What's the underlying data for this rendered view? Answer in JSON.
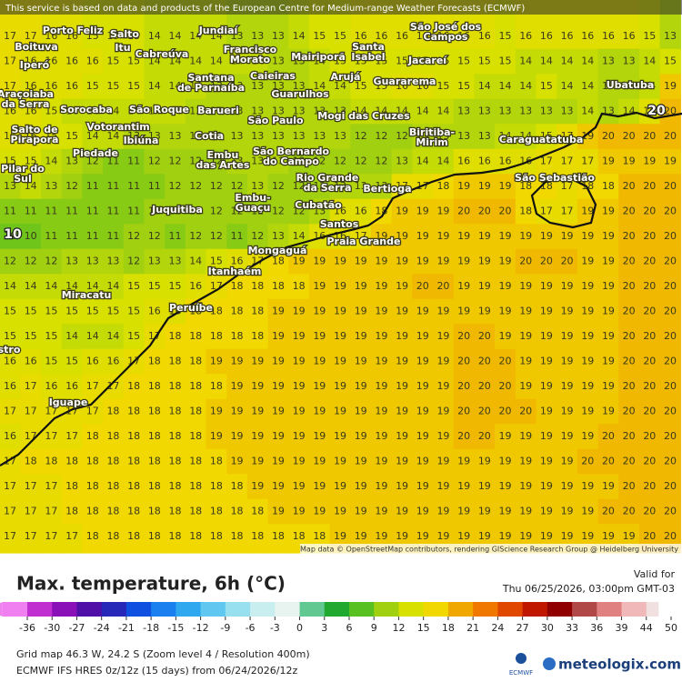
{
  "banner": "This service is based on data and products of the European Centre for Medium-range Weather Forecasts (ECMWF)",
  "attribution": "Map data © OpenStreetMap contributors, rendering GIScience Research Group @ Heidelberg University",
  "grid": [
    [
      17,
      17,
      16,
      16,
      15,
      15,
      15,
      14,
      14,
      14,
      14,
      13,
      13,
      13,
      14,
      15,
      15,
      16,
      16,
      16,
      16,
      16,
      16,
      16,
      15,
      16,
      16,
      16,
      16,
      16,
      16,
      15,
      13
    ],
    [
      17,
      16,
      16,
      16,
      16,
      15,
      15,
      14,
      14,
      14,
      14,
      14,
      14,
      13,
      13,
      14,
      15,
      15,
      15,
      15,
      15,
      15,
      15,
      15,
      15,
      14,
      14,
      14,
      14,
      13,
      13,
      14,
      15
    ],
    [
      17,
      16,
      16,
      16,
      15,
      15,
      15,
      14,
      14,
      14,
      13,
      13,
      13,
      13,
      13,
      14,
      14,
      15,
      15,
      16,
      16,
      15,
      15,
      14,
      14,
      14,
      15,
      14,
      14,
      13,
      13,
      14,
      19
    ],
    [
      16,
      16,
      15,
      14,
      14,
      14,
      14,
      14,
      14,
      13,
      13,
      13,
      13,
      13,
      13,
      13,
      13,
      14,
      14,
      14,
      14,
      14,
      13,
      13,
      13,
      13,
      13,
      13,
      14,
      13,
      14,
      16,
      20
    ],
    [
      16,
      16,
      15,
      15,
      14,
      14,
      13,
      13,
      13,
      13,
      13,
      13,
      13,
      13,
      13,
      13,
      13,
      12,
      12,
      12,
      13,
      13,
      13,
      13,
      14,
      14,
      15,
      17,
      19,
      20,
      20,
      20,
      20
    ],
    [
      15,
      15,
      14,
      13,
      12,
      11,
      11,
      12,
      12,
      12,
      12,
      13,
      13,
      13,
      12,
      12,
      12,
      12,
      12,
      13,
      14,
      14,
      16,
      16,
      16,
      16,
      17,
      17,
      17,
      19,
      19,
      19,
      19
    ],
    [
      13,
      14,
      13,
      12,
      11,
      11,
      11,
      11,
      12,
      12,
      12,
      12,
      13,
      12,
      12,
      12,
      13,
      13,
      13,
      17,
      17,
      18,
      19,
      19,
      19,
      18,
      18,
      17,
      18,
      18,
      20,
      20,
      20
    ],
    [
      11,
      11,
      11,
      11,
      11,
      11,
      11,
      12,
      12,
      12,
      12,
      12,
      12,
      12,
      12,
      13,
      16,
      16,
      18,
      19,
      19,
      19,
      20,
      20,
      20,
      18,
      17,
      17,
      19,
      19,
      20,
      20,
      20
    ],
    [
      10,
      10,
      11,
      11,
      11,
      11,
      12,
      12,
      11,
      12,
      12,
      11,
      12,
      13,
      14,
      16,
      16,
      17,
      19,
      19,
      19,
      19,
      19,
      19,
      19,
      19,
      19,
      19,
      19,
      19,
      20,
      20,
      20
    ],
    [
      12,
      12,
      12,
      13,
      13,
      13,
      12,
      13,
      13,
      14,
      15,
      16,
      17,
      18,
      19,
      19,
      19,
      19,
      19,
      19,
      19,
      19,
      19,
      19,
      19,
      20,
      20,
      20,
      19,
      19,
      20,
      20,
      20
    ],
    [
      14,
      14,
      14,
      14,
      14,
      14,
      15,
      15,
      15,
      16,
      17,
      18,
      18,
      18,
      18,
      19,
      19,
      19,
      19,
      19,
      20,
      20,
      19,
      19,
      19,
      19,
      19,
      19,
      19,
      19,
      20,
      20,
      20
    ],
    [
      15,
      15,
      15,
      15,
      15,
      15,
      15,
      16,
      16,
      18,
      18,
      18,
      18,
      19,
      19,
      19,
      19,
      19,
      19,
      19,
      19,
      19,
      19,
      19,
      19,
      19,
      19,
      19,
      19,
      19,
      20,
      20,
      20
    ],
    [
      15,
      15,
      15,
      14,
      14,
      14,
      15,
      17,
      18,
      18,
      18,
      18,
      18,
      19,
      19,
      19,
      19,
      19,
      19,
      19,
      19,
      19,
      20,
      20,
      19,
      19,
      19,
      19,
      19,
      19,
      20,
      20,
      20
    ],
    [
      16,
      16,
      15,
      15,
      16,
      16,
      17,
      18,
      18,
      18,
      19,
      19,
      19,
      19,
      19,
      19,
      19,
      19,
      19,
      19,
      19,
      19,
      20,
      20,
      20,
      19,
      19,
      19,
      19,
      19,
      20,
      20,
      20
    ],
    [
      16,
      17,
      16,
      16,
      17,
      17,
      18,
      18,
      18,
      18,
      18,
      19,
      19,
      19,
      19,
      19,
      19,
      19,
      19,
      19,
      19,
      19,
      20,
      20,
      20,
      19,
      19,
      19,
      19,
      19,
      20,
      20,
      20
    ],
    [
      17,
      17,
      17,
      17,
      17,
      18,
      18,
      18,
      18,
      18,
      19,
      19,
      19,
      19,
      19,
      19,
      19,
      19,
      19,
      19,
      19,
      19,
      20,
      20,
      20,
      20,
      19,
      19,
      19,
      19,
      20,
      20,
      20
    ],
    [
      16,
      17,
      17,
      17,
      18,
      18,
      18,
      18,
      18,
      18,
      19,
      19,
      19,
      19,
      19,
      19,
      19,
      19,
      19,
      19,
      19,
      19,
      20,
      20,
      19,
      19,
      19,
      19,
      19,
      20,
      20,
      20,
      20
    ],
    [
      17,
      18,
      18,
      18,
      18,
      18,
      18,
      18,
      18,
      18,
      18,
      19,
      19,
      19,
      19,
      19,
      19,
      19,
      19,
      19,
      19,
      19,
      19,
      19,
      19,
      19,
      19,
      19,
      20,
      20,
      20,
      20,
      20
    ],
    [
      17,
      17,
      17,
      18,
      18,
      18,
      18,
      18,
      18,
      18,
      18,
      18,
      19,
      19,
      19,
      19,
      19,
      19,
      19,
      19,
      19,
      19,
      19,
      19,
      19,
      19,
      19,
      19,
      19,
      19,
      20,
      20,
      20
    ],
    [
      17,
      17,
      17,
      18,
      18,
      18,
      18,
      18,
      18,
      18,
      18,
      18,
      18,
      19,
      19,
      19,
      19,
      19,
      19,
      19,
      19,
      19,
      19,
      19,
      19,
      19,
      19,
      19,
      19,
      20,
      20,
      20,
      20
    ],
    [
      17,
      17,
      17,
      17,
      18,
      18,
      18,
      18,
      18,
      18,
      18,
      18,
      18,
      18,
      18,
      18,
      19,
      19,
      19,
      19,
      19,
      19,
      19,
      19,
      19,
      19,
      19,
      19,
      19,
      19,
      19,
      20,
      20
    ]
  ],
  "places": [
    {
      "lines": [
        "Porto Feliz"
      ]
    },
    {
      "lines": [
        "Salto"
      ]
    },
    {
      "lines": [
        "Jundiaí"
      ]
    },
    {
      "lines": [
        "São José dos",
        "Campos"
      ]
    },
    {
      "lines": [
        "Boituva"
      ]
    },
    {
      "lines": [
        "Itu"
      ]
    },
    {
      "lines": [
        "Cabreúva"
      ]
    },
    {
      "lines": [
        "Francisco",
        "Morato"
      ]
    },
    {
      "lines": [
        "Mairiporã"
      ]
    },
    {
      "lines": [
        "Santa",
        "Isabel"
      ]
    },
    {
      "lines": [
        "Jacareí"
      ]
    },
    {
      "lines": [
        "Iperó"
      ]
    },
    {
      "lines": [
        "Caieiras"
      ]
    },
    {
      "lines": [
        "Santana",
        "de Parnaíba"
      ]
    },
    {
      "lines": [
        "Arujá"
      ]
    },
    {
      "lines": [
        "Guararema"
      ]
    },
    {
      "lines": [
        "Ubatuba"
      ]
    },
    {
      "lines": [
        "Guarulhos"
      ]
    },
    {
      "lines": [
        "Araçoiaba",
        "da Serra"
      ]
    },
    {
      "lines": [
        "Sorocaba"
      ]
    },
    {
      "lines": [
        "São Roque"
      ]
    },
    {
      "lines": [
        "Barueri"
      ]
    },
    {
      "lines": [
        "São Paulo"
      ]
    },
    {
      "lines": [
        "Mogi das Cruzes"
      ]
    },
    {
      "lines": [
        "Votorantim"
      ]
    },
    {
      "lines": [
        "Salto de",
        "Pirapora"
      ]
    },
    {
      "lines": [
        "Ibiúna"
      ]
    },
    {
      "lines": [
        "Cotia"
      ]
    },
    {
      "lines": [
        "Biritiba-",
        "Mirim"
      ]
    },
    {
      "lines": [
        "Caraguatatuba"
      ]
    },
    {
      "lines": [
        "Piedade"
      ]
    },
    {
      "lines": [
        "São Bernardo",
        "do Campo"
      ]
    },
    {
      "lines": [
        "Embu",
        "das Artes"
      ]
    },
    {
      "lines": [
        "Pilar do",
        "Sul"
      ]
    },
    {
      "lines": [
        "São Sebastião"
      ]
    },
    {
      "lines": [
        "Rio Grande",
        "da Serra"
      ]
    },
    {
      "lines": [
        "Bertioga"
      ]
    },
    {
      "lines": [
        "Embu-",
        "Guaçu"
      ]
    },
    {
      "lines": [
        "Cubatão"
      ]
    },
    {
      "lines": [
        "Juquitiba"
      ]
    },
    {
      "lines": [
        "Santos"
      ]
    },
    {
      "lines": [
        "Praia Grande"
      ]
    },
    {
      "lines": [
        "Mongaguá"
      ]
    },
    {
      "lines": [
        "Itanhaém"
      ]
    },
    {
      "lines": [
        "Miracatu"
      ]
    },
    {
      "lines": [
        "Peruíbe"
      ]
    },
    {
      "lines": [
        "Iguape"
      ]
    },
    {
      "lines": [
        "stro"
      ]
    }
  ],
  "contour_labels": [
    20,
    10
  ],
  "footer": {
    "title": "Max. temperature, 6h (°C)",
    "valid_label": "Valid for",
    "valid_time": "Thu 06/25/2026, 03:00pm GMT-03",
    "grid_info": "Grid map 46.3 W, 24.2 S (Zoom level 4 / Resolution 400m)",
    "model_info": "ECMWF IFS HRES 0z/12z (15 days) from 06/24/2026/12z",
    "ecmwf": "ECMWF",
    "brand": "meteologix.com"
  },
  "colorbar": {
    "ticks": [
      -36,
      -30,
      -27,
      -24,
      -21,
      -18,
      -15,
      -12,
      -9,
      -6,
      -3,
      0,
      3,
      6,
      9,
      12,
      15,
      18,
      21,
      24,
      27,
      30,
      33,
      36,
      39,
      44,
      50
    ],
    "colors": [
      "#f080f0",
      "#c030d0",
      "#8a10b8",
      "#5010a8",
      "#2828b8",
      "#1050e0",
      "#1a80f0",
      "#30a8f0",
      "#60c8f0",
      "#98e0f0",
      "#c8eef0",
      "#e8f4f0",
      "#60c890",
      "#20a830",
      "#58c020",
      "#a0d010",
      "#d8e000",
      "#f0d800",
      "#f0a800",
      "#f07800",
      "#e04800",
      "#c01800",
      "#900000",
      "#b04848",
      "#e08080",
      "#f0b8b8",
      "#f0e0e0"
    ]
  }
}
